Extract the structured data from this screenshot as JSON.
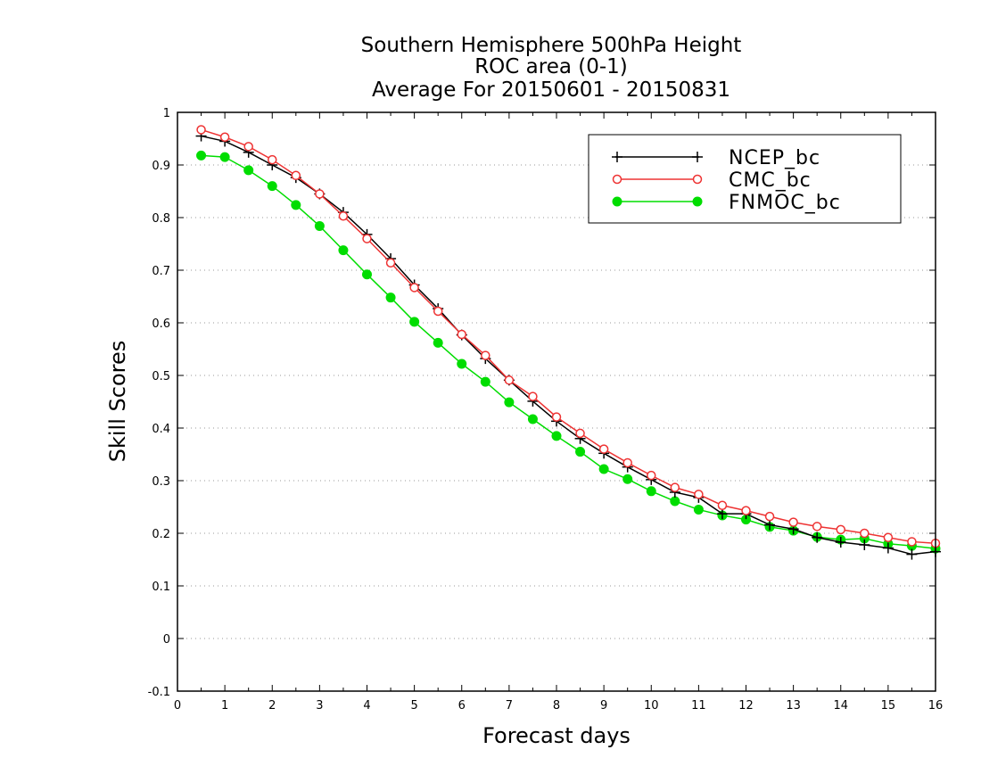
{
  "chart_data": {
    "type": "line",
    "title_lines": [
      "Southern Hemisphere 500hPa Height",
      "ROC area (0-1)",
      "Average For 20150601 - 20150831"
    ],
    "xlabel": "Forecast days",
    "ylabel": "Skill Scores",
    "xlim": [
      0,
      16
    ],
    "ylim": [
      -0.1,
      1
    ],
    "x_ticks": [
      "0",
      "1",
      "2",
      "3",
      "4",
      "5",
      "6",
      "7",
      "8",
      "9",
      "10",
      "11",
      "12",
      "13",
      "14",
      "15",
      "16"
    ],
    "y_ticks": [
      "-0.1",
      "0",
      "0.1",
      "0.2",
      "0.3",
      "0.4",
      "0.5",
      "0.6",
      "0.7",
      "0.8",
      "0.9",
      "1"
    ],
    "grid": "horizontal-dotted",
    "legend_position": "top-right",
    "x": [
      0.5,
      1,
      1.5,
      2,
      2.5,
      3,
      3.5,
      4,
      4.5,
      5,
      5.5,
      6,
      6.5,
      7,
      7.5,
      8,
      8.5,
      9,
      9.5,
      10,
      10.5,
      11,
      11.5,
      12,
      12.5,
      13,
      13.5,
      14,
      14.5,
      15,
      15.5,
      16
    ],
    "series": [
      {
        "name": "NCEP_bc",
        "color": "#000000",
        "marker": "plus",
        "values": [
          0.955,
          0.945,
          0.924,
          0.9,
          0.876,
          0.845,
          0.81,
          0.768,
          0.722,
          0.672,
          0.627,
          0.577,
          0.532,
          0.491,
          0.451,
          0.413,
          0.38,
          0.352,
          0.326,
          0.302,
          0.278,
          0.268,
          0.237,
          0.237,
          0.216,
          0.208,
          0.192,
          0.183,
          0.178,
          0.172,
          0.16,
          0.165
        ]
      },
      {
        "name": "CMC_bc",
        "color": "#ee3333",
        "marker": "open-circle",
        "values": [
          0.967,
          0.953,
          0.935,
          0.91,
          0.88,
          0.845,
          0.803,
          0.76,
          0.714,
          0.667,
          0.622,
          0.578,
          0.538,
          0.491,
          0.46,
          0.421,
          0.39,
          0.36,
          0.334,
          0.31,
          0.287,
          0.274,
          0.253,
          0.243,
          0.232,
          0.221,
          0.213,
          0.207,
          0.2,
          0.192,
          0.184,
          0.181
        ]
      },
      {
        "name": "FNMOC_bc",
        "color": "#00dd00",
        "marker": "filled-circle",
        "values": [
          0.918,
          0.915,
          0.89,
          0.86,
          0.824,
          0.784,
          0.738,
          0.692,
          0.648,
          0.602,
          0.562,
          0.522,
          0.488,
          0.449,
          0.417,
          0.385,
          0.355,
          0.322,
          0.303,
          0.28,
          0.261,
          0.245,
          0.234,
          0.226,
          0.212,
          0.205,
          0.193,
          0.188,
          0.19,
          0.18,
          0.176,
          0.171
        ]
      }
    ]
  }
}
